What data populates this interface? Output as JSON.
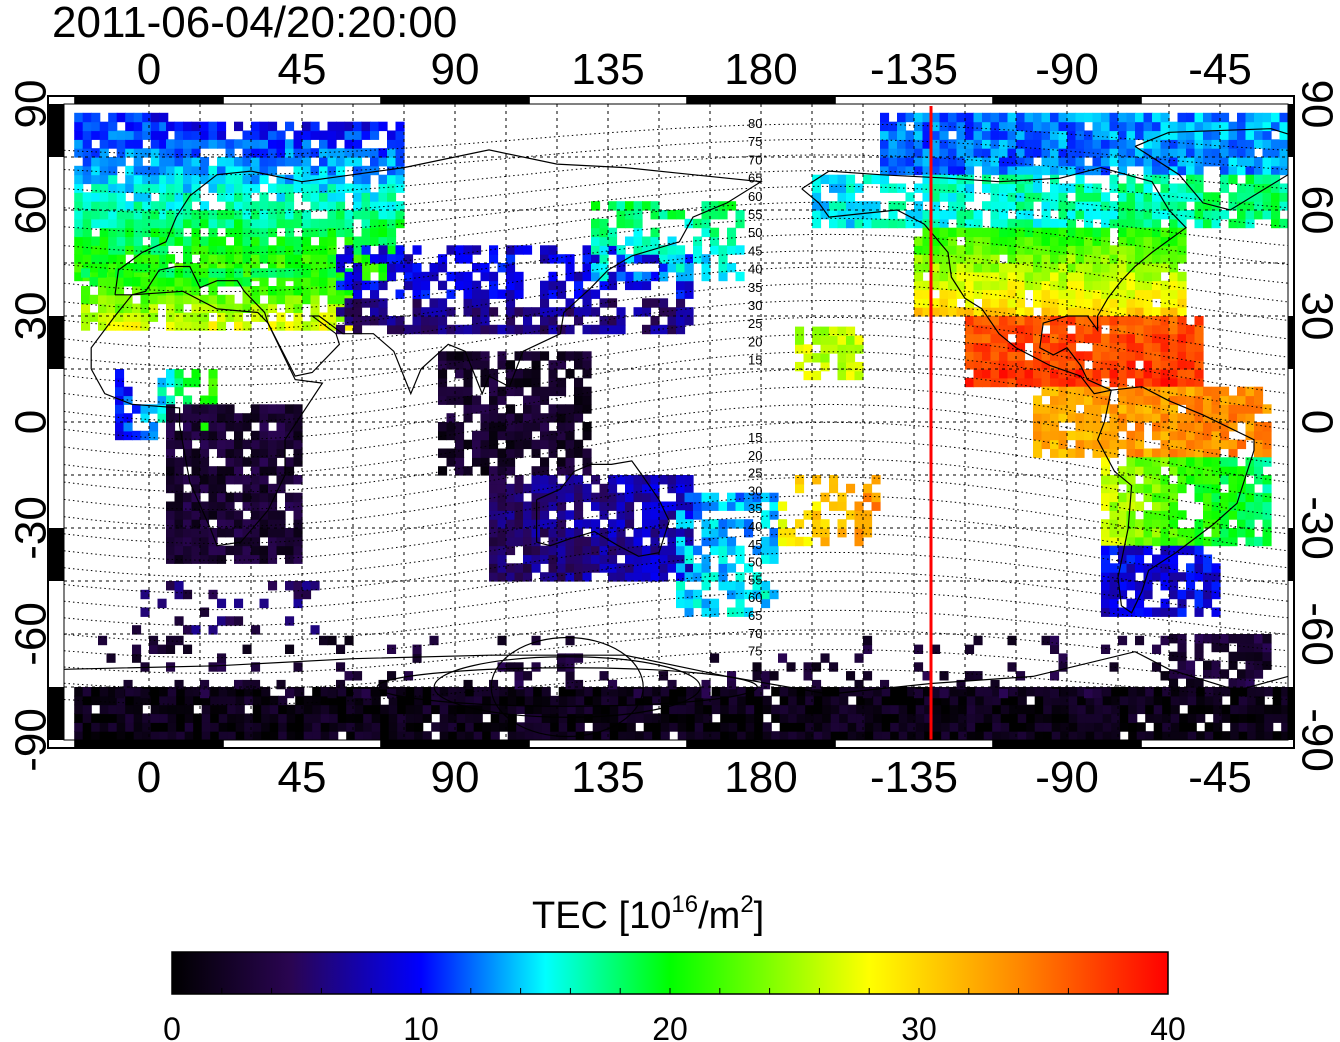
{
  "title": "2011-06-04/20:20:00",
  "axes": {
    "lon_tick_labels": [
      "0",
      "45",
      "90",
      "135",
      "180",
      "-135",
      "-90",
      "-45"
    ],
    "lat_tick_labels": [
      "90",
      "60",
      "30",
      "0",
      "-30",
      "-60",
      "-90"
    ]
  },
  "magnetic_latitude_labels": {
    "north": [
      "80",
      "75",
      "70",
      "65",
      "60",
      "55",
      "50",
      "45",
      "40",
      "35",
      "30",
      "25",
      "20",
      "15"
    ],
    "south": [
      "15",
      "20",
      "25",
      "30",
      "35",
      "40",
      "45",
      "50",
      "55",
      "60",
      "65",
      "70",
      "75"
    ]
  },
  "colorbar": {
    "label_main": "TEC  [10",
    "label_sup": "16",
    "label_mid": "/m",
    "label_sup2": "2",
    "label_end": "]",
    "tick_labels": [
      "0",
      "10",
      "20",
      "30",
      "40"
    ],
    "min": 0,
    "max": 40,
    "colors": [
      "#000000",
      "#3a0a6e",
      "#0000ff",
      "#00ffff",
      "#00ff00",
      "#ffff00",
      "#ff8800",
      "#ff0000"
    ]
  },
  "map": {
    "lon_range": [
      -25,
      335
    ],
    "lat_range": [
      -90,
      90
    ],
    "marker_longitude": 230,
    "marker_color": "#ff0000"
  }
}
